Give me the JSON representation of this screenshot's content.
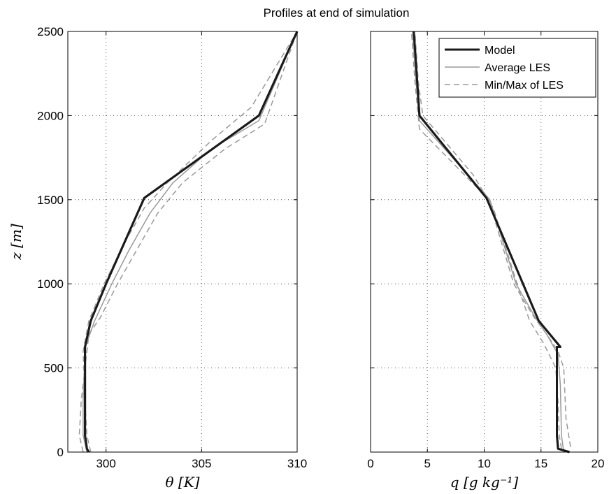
{
  "title": "Profiles at end of simulation",
  "chart_data": [
    {
      "type": "line",
      "xlabel": "θ [K]",
      "ylabel": "z [m]",
      "xlim": [
        298,
        310
      ],
      "ylim": [
        0,
        2500
      ],
      "xticks": [
        300,
        305,
        310
      ],
      "yticks": [
        0,
        500,
        1000,
        1500,
        2000,
        2500
      ],
      "grid": true,
      "series": [
        {
          "name": "Model",
          "style": "model",
          "points": [
            [
              299.1,
              0
            ],
            [
              299.0,
              20
            ],
            [
              298.9,
              100
            ],
            [
              298.9,
              625
            ],
            [
              299.2,
              780
            ],
            [
              300.0,
              1000
            ],
            [
              302.0,
              1510
            ],
            [
              308.0,
              2000
            ],
            [
              310.0,
              2500
            ]
          ]
        },
        {
          "name": "Average LES",
          "style": "avg",
          "points": [
            [
              299.0,
              0
            ],
            [
              298.8,
              100
            ],
            [
              298.8,
              300
            ],
            [
              298.9,
              620
            ],
            [
              299.4,
              780
            ],
            [
              300.3,
              1000
            ],
            [
              301.2,
              1200
            ],
            [
              302.3,
              1420
            ],
            [
              303.5,
              1600
            ],
            [
              305.5,
              1800
            ],
            [
              308.0,
              1970
            ],
            [
              310.0,
              2500
            ]
          ]
        },
        {
          "name": "Min/Max of LES",
          "style": "minmax",
          "points": [
            [
              298.8,
              0
            ],
            [
              298.6,
              100
            ],
            [
              298.7,
              300
            ],
            [
              298.9,
              500
            ],
            [
              299.1,
              700
            ],
            [
              299.7,
              800
            ],
            [
              300.6,
              1000
            ],
            [
              301.6,
              1200
            ],
            [
              302.7,
              1420
            ],
            [
              304.0,
              1600
            ],
            [
              306.2,
              1800
            ],
            [
              308.3,
              1950
            ],
            [
              310.0,
              2500
            ]
          ]
        },
        {
          "name": "Min/Max of LES",
          "style": "minmax",
          "points": [
            [
              299.2,
              0
            ],
            [
              299.0,
              100
            ],
            [
              298.9,
              300
            ],
            [
              298.8,
              600
            ],
            [
              299.1,
              780
            ],
            [
              299.9,
              1000
            ],
            [
              301.0,
              1250
            ],
            [
              302.0,
              1450
            ],
            [
              303.2,
              1600
            ],
            [
              305.5,
              1850
            ],
            [
              307.6,
              2050
            ],
            [
              310.0,
              2500
            ]
          ]
        }
      ]
    },
    {
      "type": "line",
      "xlabel": "q [g kg⁻¹]",
      "ylabel": "",
      "xlim": [
        0,
        20
      ],
      "ylim": [
        0,
        2500
      ],
      "xticks": [
        0,
        5,
        10,
        15,
        20
      ],
      "yticks": [
        0,
        500,
        1000,
        1500,
        2000,
        2500
      ],
      "grid": true,
      "legend": "top-right",
      "series": [
        {
          "name": "Model",
          "style": "model",
          "points": [
            [
              17.5,
              0
            ],
            [
              16.5,
              20
            ],
            [
              16.4,
              100
            ],
            [
              16.4,
              625
            ],
            [
              16.7,
              625
            ],
            [
              14.8,
              780
            ],
            [
              10.2,
              1510
            ],
            [
              4.3,
              2000
            ],
            [
              3.8,
              2500
            ]
          ]
        },
        {
          "name": "Average LES",
          "style": "avg",
          "points": [
            [
              17.0,
              0
            ],
            [
              16.8,
              100
            ],
            [
              16.7,
              400
            ],
            [
              16.5,
              580
            ],
            [
              15.5,
              700
            ],
            [
              14.5,
              800
            ],
            [
              12.8,
              1000
            ],
            [
              10.5,
              1500
            ],
            [
              4.3,
              1970
            ],
            [
              4.0,
              2200
            ],
            [
              3.7,
              2500
            ]
          ]
        },
        {
          "name": "Min/Max of LES",
          "style": "minmax",
          "points": [
            [
              17.6,
              30
            ],
            [
              17.2,
              200
            ],
            [
              17.0,
              500
            ],
            [
              16.5,
              600
            ],
            [
              15.5,
              700
            ],
            [
              14.4,
              800
            ],
            [
              12.6,
              1000
            ],
            [
              10.4,
              1500
            ],
            [
              7.5,
              1700
            ],
            [
              4.3,
              1920
            ],
            [
              3.9,
              2200
            ],
            [
              3.6,
              2500
            ]
          ]
        },
        {
          "name": "Min/Max of LES",
          "style": "minmax",
          "points": [
            [
              16.8,
              20
            ],
            [
              16.6,
              100
            ],
            [
              16.5,
              300
            ],
            [
              16.3,
              500
            ],
            [
              15.2,
              650
            ],
            [
              14.0,
              780
            ],
            [
              12.9,
              1000
            ],
            [
              10.8,
              1450
            ],
            [
              9.0,
              1650
            ],
            [
              4.6,
              2000
            ],
            [
              4.2,
              2200
            ],
            [
              3.9,
              2500
            ]
          ]
        }
      ]
    }
  ],
  "legend": {
    "entries": [
      {
        "label": "Model",
        "style": "model"
      },
      {
        "label": "Average LES",
        "style": "avg"
      },
      {
        "label": "Min/Max of LES",
        "style": "minmax"
      }
    ]
  },
  "styles": {
    "model": {
      "color": "#1a1a1a",
      "width": 3,
      "dash": ""
    },
    "avg": {
      "color": "#999999",
      "width": 1.5,
      "dash": ""
    },
    "minmax": {
      "color": "#999999",
      "width": 1.5,
      "dash": "8 5"
    }
  }
}
